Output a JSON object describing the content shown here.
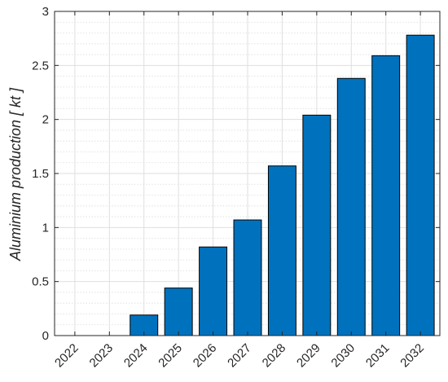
{
  "chart_data": {
    "type": "bar",
    "categories": [
      "2022",
      "2023",
      "2024",
      "2025",
      "2026",
      "2027",
      "2028",
      "2029",
      "2030",
      "2031",
      "2032"
    ],
    "values": [
      0,
      0,
      0.19,
      0.44,
      0.82,
      1.07,
      1.57,
      2.04,
      2.38,
      2.59,
      2.78
    ],
    "title": "",
    "xlabel": "",
    "ylabel": "Aluminium production [ kt ]",
    "ylim": [
      0,
      3
    ],
    "yticks": [
      0,
      0.5,
      1,
      1.5,
      2,
      2.5,
      3
    ],
    "ytick_labels": [
      "0",
      "0.5",
      "1",
      "1.5",
      "2",
      "2.5",
      "3"
    ],
    "grid": true,
    "minor_grid": true,
    "bar_color": "#0072BD",
    "edge_color": "#000000"
  }
}
